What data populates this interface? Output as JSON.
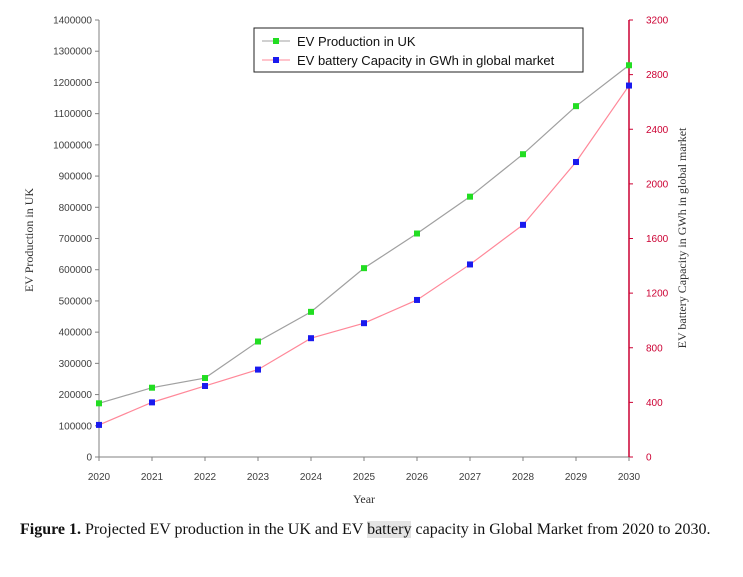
{
  "chart_data": {
    "type": "line",
    "x": [
      2020,
      2021,
      2022,
      2023,
      2024,
      2025,
      2026,
      2027,
      2028,
      2029,
      2030
    ],
    "xlabel": "Year",
    "ylabel": "EV Production in UK",
    "y2label": "EV battery Capacity in GWh in global market",
    "ylim": [
      0,
      1400000
    ],
    "y2lim": [
      0,
      3200
    ],
    "yticks": [
      0,
      100000,
      200000,
      300000,
      400000,
      500000,
      600000,
      700000,
      800000,
      900000,
      1000000,
      1100000,
      1200000,
      1300000,
      1400000
    ],
    "y2ticks": [
      0,
      400,
      800,
      1200,
      1600,
      2000,
      2400,
      2800,
      3200
    ],
    "grid": false,
    "legend_position": "top-center",
    "series": [
      {
        "name": "EV Production in UK",
        "axis": "left",
        "line_color": "#a0a0a0",
        "marker_color": "#22dd22",
        "values": [
          172000,
          222000,
          253000,
          370000,
          465000,
          605000,
          716000,
          834000,
          970000,
          1124000,
          1255000
        ]
      },
      {
        "name": "EV battery Capacity in GWh in global market",
        "axis": "right",
        "line_color": "#ff8899",
        "marker_color": "#1a1aee",
        "values": [
          235,
          400,
          520,
          640,
          870,
          980,
          1150,
          1410,
          1700,
          2160,
          2720
        ]
      }
    ]
  },
  "caption": {
    "label": "Figure 1.",
    "text_before": " Projected EV production in the UK and EV ",
    "highlight": "battery",
    "text_after": " capacity in Global Market from 2020 to 2030."
  },
  "colors": {
    "left_axis": "#808080",
    "right_axis": "#cc0033"
  }
}
